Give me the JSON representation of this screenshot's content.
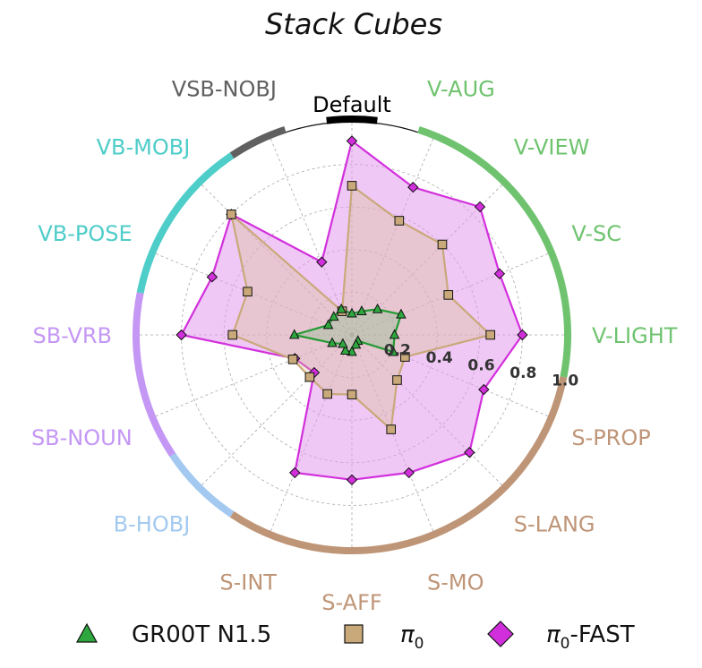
{
  "chart_data": {
    "type": "radar",
    "title": "Stack Cubes",
    "axis_range": [
      0,
      1.0
    ],
    "ticks": [
      "0.2",
      "0.4",
      "0.6",
      "0.8",
      "1.0"
    ],
    "tick_values": [
      0.2,
      0.4,
      0.6,
      0.8,
      1.0
    ],
    "categories": [
      "Default",
      "V-AUG",
      "V-VIEW",
      "V-SC",
      "V-LIGHT",
      "S-PROP",
      "S-LANG",
      "S-MO",
      "S-AFF",
      "S-INT",
      "B-HOBJ",
      "SB-NOUN",
      "SB-VRB",
      "VB-POSE",
      "VB-MOBJ",
      "VSB-NOBJ"
    ],
    "groups": [
      {
        "name": "Default",
        "color": "#000000",
        "start": 0,
        "end": 0
      },
      {
        "name": "V",
        "color": "#6fc36f",
        "start": 1,
        "end": 4
      },
      {
        "name": "S",
        "color": "#bf9577",
        "start": 5,
        "end": 9
      },
      {
        "name": "B",
        "color": "#a3c9f0",
        "start": 10,
        "end": 10
      },
      {
        "name": "SB",
        "color": "#c497f5",
        "start": 11,
        "end": 12
      },
      {
        "name": "VB",
        "color": "#4ecdc9",
        "start": 13,
        "end": 14
      },
      {
        "name": "VSB",
        "color": "#606060",
        "start": 15,
        "end": 15
      }
    ],
    "label_colors": [
      "#000000",
      "#6fc36f",
      "#6fc36f",
      "#6fc36f",
      "#6fc36f",
      "#bf9577",
      "#bf9577",
      "#bf9577",
      "#bf9577",
      "#bf9577",
      "#a3c9f0",
      "#c497f5",
      "#c497f5",
      "#4ecdc9",
      "#4ecdc9",
      "#606060"
    ],
    "series": [
      {
        "name": "π₀-FAST",
        "legend_main": "π",
        "legend_sub": "0",
        "legend_tail": "-FAST",
        "marker": "diamond",
        "color": "#d22fdc",
        "fill": "#e49bef",
        "fill_opacity": 0.55,
        "values": [
          0.91,
          0.75,
          0.85,
          0.75,
          0.8,
          0.67,
          0.78,
          0.7,
          0.68,
          0.7,
          0.25,
          0.29,
          0.8,
          0.71,
          0.8,
          0.37
        ]
      },
      {
        "name": "π₀",
        "legend_main": "π",
        "legend_sub": "0",
        "legend_tail": "",
        "marker": "square",
        "color": "#c9a97a",
        "fill": "#d8bf8d",
        "fill_opacity": 0.35,
        "values": [
          0.7,
          0.58,
          0.6,
          0.49,
          0.65,
          0.27,
          0.3,
          0.48,
          0.28,
          0.3,
          0.28,
          0.3,
          0.56,
          0.53,
          0.8,
          0.12
        ]
      },
      {
        "name": "GR00T N1.5",
        "legend_main": "GR00T N1.5",
        "legend_sub": "",
        "legend_tail": "",
        "marker": "triangle",
        "color": "#229a33",
        "fill": "#5fbf6a",
        "fill_opacity": 0.25,
        "values": [
          0.1,
          0.12,
          0.17,
          0.25,
          0.2,
          0.21,
          0.04,
          0.05,
          0.08,
          0.08,
          0.06,
          0.1,
          0.27,
          0.12,
          0.12,
          0.13
        ]
      }
    ],
    "legend_order": [
      2,
      1,
      0
    ]
  }
}
